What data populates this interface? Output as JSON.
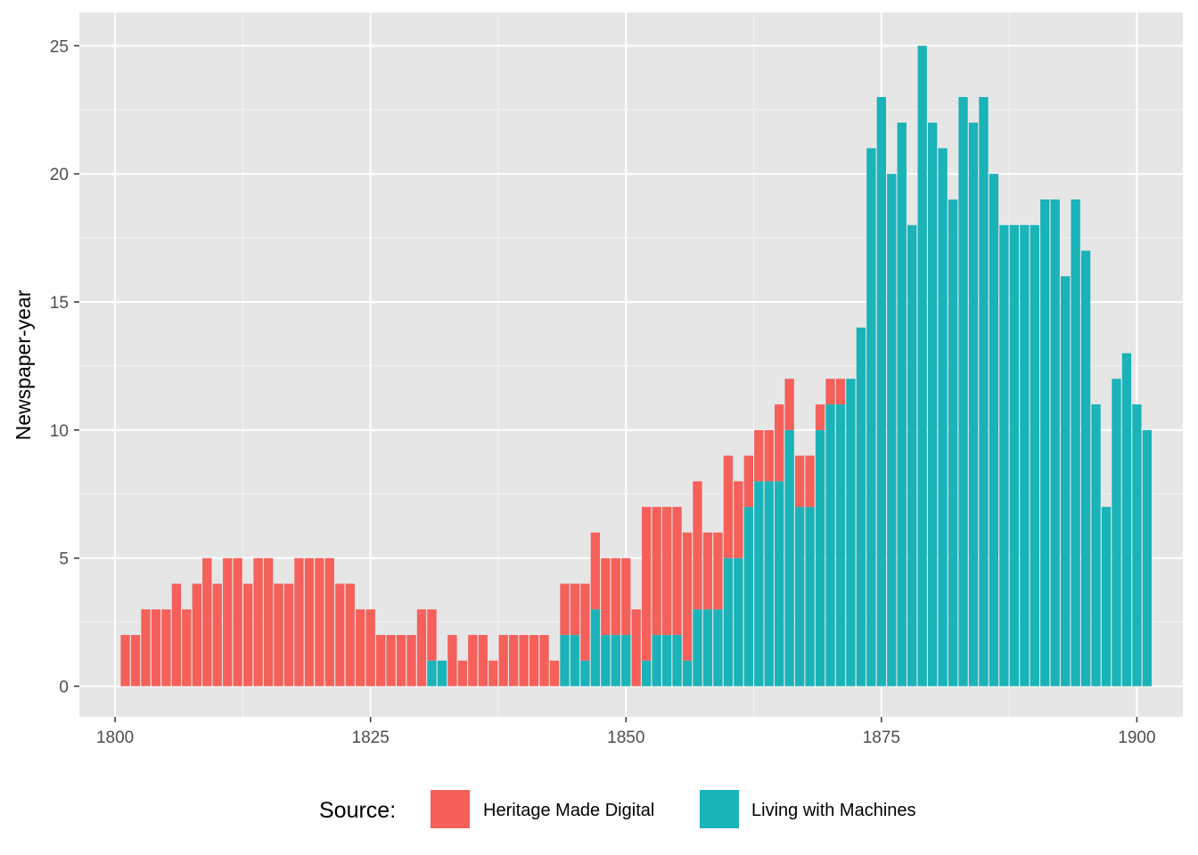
{
  "chart_data": {
    "type": "bar",
    "stacked": true,
    "title": "",
    "xlabel": "",
    "ylabel": "Newspaper-year",
    "xlim": [
      1796.5,
      1904.5
    ],
    "ylim": [
      -1.2,
      26.3
    ],
    "x_ticks": [
      1800,
      1825,
      1850,
      1875,
      1900
    ],
    "y_ticks": [
      0,
      5,
      10,
      15,
      20,
      25
    ],
    "grid": true,
    "legend": {
      "title": "Source:",
      "position": "bottom",
      "entries": [
        "Heritage Made Digital",
        "Living with Machines"
      ]
    },
    "x": [
      1801,
      1802,
      1803,
      1804,
      1805,
      1806,
      1807,
      1808,
      1809,
      1810,
      1811,
      1812,
      1813,
      1814,
      1815,
      1816,
      1817,
      1818,
      1819,
      1820,
      1821,
      1822,
      1823,
      1824,
      1825,
      1826,
      1827,
      1828,
      1829,
      1830,
      1831,
      1832,
      1833,
      1834,
      1835,
      1836,
      1837,
      1838,
      1839,
      1840,
      1841,
      1842,
      1843,
      1844,
      1845,
      1846,
      1847,
      1848,
      1849,
      1850,
      1851,
      1852,
      1853,
      1854,
      1855,
      1856,
      1857,
      1858,
      1859,
      1860,
      1861,
      1862,
      1863,
      1864,
      1865,
      1866,
      1867,
      1868,
      1869,
      1870,
      1871,
      1872,
      1873,
      1874,
      1875,
      1876,
      1877,
      1878,
      1879,
      1880,
      1881,
      1882,
      1883,
      1884,
      1885,
      1886,
      1887,
      1888,
      1889,
      1890,
      1891,
      1892,
      1893,
      1894,
      1895,
      1896,
      1897,
      1898,
      1899,
      1900,
      1901
    ],
    "series": [
      {
        "name": "Living with Machines",
        "color": "#19b3b8",
        "values": [
          0,
          0,
          0,
          0,
          0,
          0,
          0,
          0,
          0,
          0,
          0,
          0,
          0,
          0,
          0,
          0,
          0,
          0,
          0,
          0,
          0,
          0,
          0,
          0,
          0,
          0,
          0,
          0,
          0,
          0,
          1,
          1,
          0,
          0,
          0,
          0,
          0,
          0,
          0,
          0,
          0,
          0,
          0,
          2,
          2,
          1,
          3,
          2,
          2,
          2,
          0,
          1,
          2,
          2,
          2,
          1,
          3,
          3,
          3,
          5,
          5,
          7,
          8,
          8,
          8,
          10,
          7,
          7,
          10,
          11,
          11,
          12,
          14,
          21,
          23,
          20,
          22,
          18,
          25,
          22,
          21,
          19,
          23,
          22,
          23,
          20,
          18,
          18,
          18,
          18,
          19,
          19,
          16,
          19,
          17,
          11,
          7,
          12,
          13,
          11,
          10
        ]
      },
      {
        "name": "Heritage Made Digital",
        "color": "#f5605a",
        "values": [
          2,
          2,
          3,
          3,
          3,
          4,
          3,
          4,
          5,
          4,
          5,
          5,
          4,
          5,
          5,
          4,
          4,
          5,
          5,
          5,
          5,
          4,
          4,
          3,
          3,
          2,
          2,
          2,
          2,
          3,
          2,
          0,
          2,
          1,
          2,
          2,
          1,
          2,
          2,
          2,
          2,
          2,
          1,
          2,
          2,
          3,
          3,
          3,
          3,
          3,
          3,
          6,
          5,
          5,
          5,
          5,
          5,
          3,
          3,
          4,
          3,
          2,
          2,
          2,
          3,
          2,
          2,
          2,
          1,
          1,
          1,
          0,
          0,
          0,
          0,
          0,
          0,
          0,
          0,
          0,
          0,
          0,
          0,
          0,
          0,
          0,
          0,
          0,
          0,
          0,
          0,
          0,
          0,
          0,
          0,
          0,
          0,
          0,
          0,
          0,
          0
        ]
      }
    ]
  }
}
